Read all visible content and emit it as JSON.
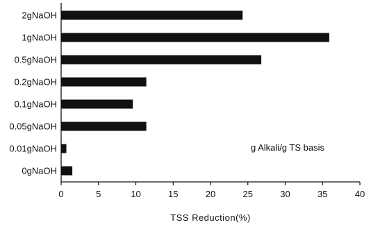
{
  "chart_data": {
    "type": "bar",
    "orientation": "horizontal",
    "categories": [
      "2gNaOH",
      "1gNaOH",
      "0.5gNaOH",
      "0.2gNaOH",
      "0.1gNaOH",
      "0.05gNaOH",
      "0.01gNaOH",
      "0gNaOH"
    ],
    "values": [
      24.3,
      35.9,
      26.8,
      11.4,
      9.6,
      11.4,
      0.7,
      1.5
    ],
    "xlabel": "TSS Reduction(%)",
    "ylabel": "",
    "xlim": [
      0,
      40
    ],
    "xticks": [
      "0",
      "5",
      "10",
      "15",
      "20",
      "25",
      "30",
      "35",
      "40"
    ],
    "annotation": "g Alkali/g TS basis",
    "grid": false,
    "bar_color": "#111111"
  }
}
